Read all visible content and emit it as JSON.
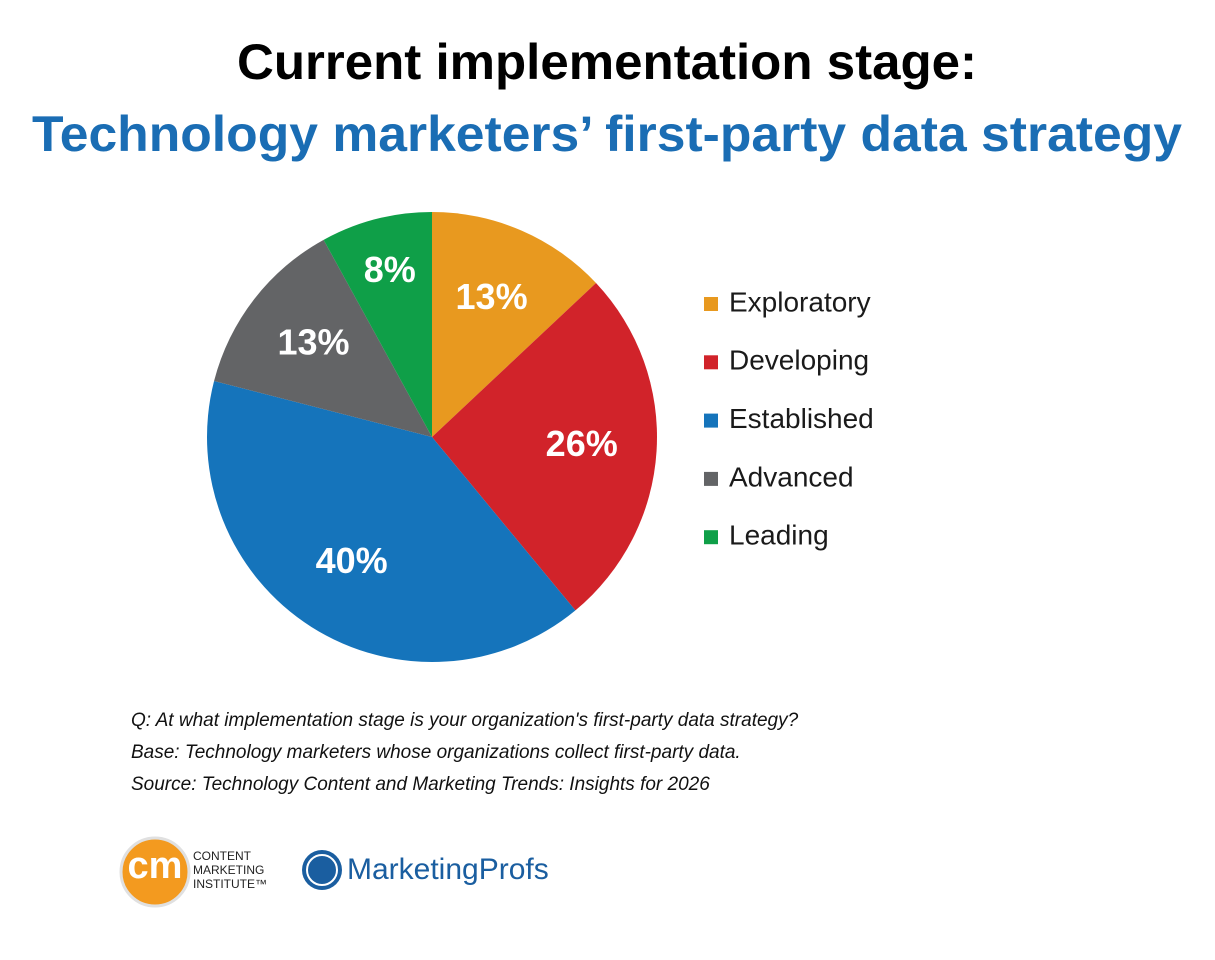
{
  "chart_data": {
    "type": "pie",
    "title": "Current implementation stage:",
    "subtitle": "Technology marketers’ first-party data strategy",
    "categories": [
      "Exploratory",
      "Developing",
      "Established",
      "Advanced",
      "Leading"
    ],
    "values": [
      13,
      26,
      40,
      13,
      8
    ],
    "value_labels": [
      "13%",
      "26%",
      "40%",
      "13%",
      "8%"
    ],
    "colors": [
      "#e8991f",
      "#d1232a",
      "#1574bb",
      "#636466",
      "#0f9f48"
    ],
    "legend": "right",
    "notes": [
      "Q: At what implementation stage is your organization's first-party data strategy?",
      "Base: Technology marketers whose organizations collect first-party data.",
      "Source: Technology Content and Marketing Trends: Insights for 2026"
    ]
  },
  "logos": {
    "cmi_mark": "cm",
    "cmi_lines": [
      "CONTENT",
      "MARKETING",
      "INSTITUTE™"
    ],
    "marketingprofs": "MarketingProfs"
  }
}
